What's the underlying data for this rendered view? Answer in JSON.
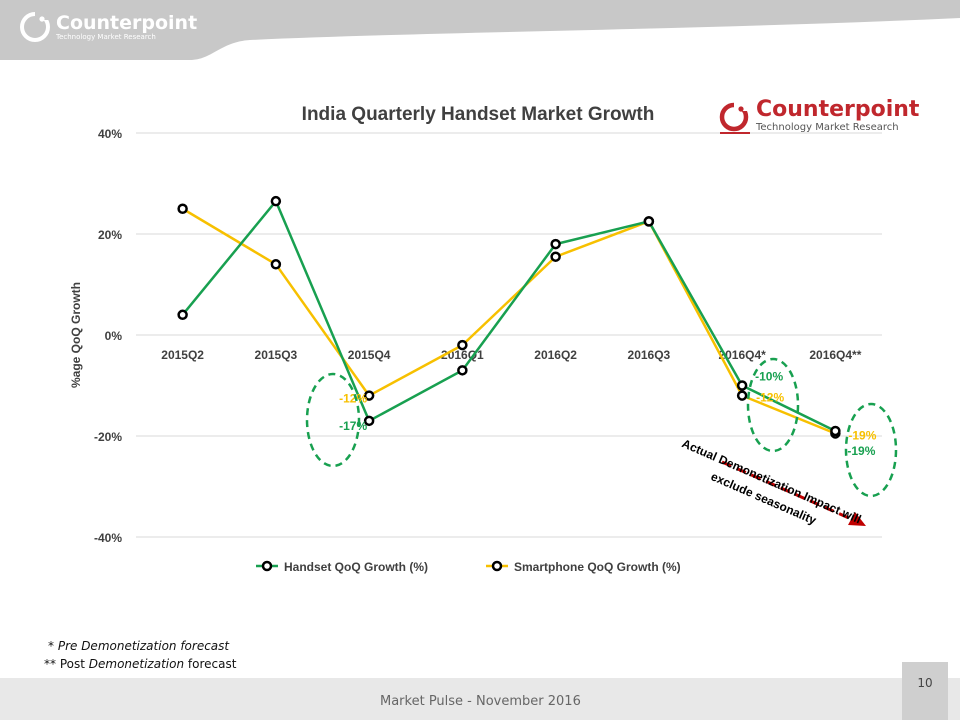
{
  "header": {
    "brand_name": "Counterpoint",
    "brand_tagline": "Technology Market Research"
  },
  "chart_logo": {
    "name": "Counterpoint",
    "tagline": "Technology Market Research"
  },
  "chart_data": {
    "type": "line",
    "title": "India Quarterly Handset Market Growth",
    "xlabel": "",
    "ylabel": "%age QoQ Growth",
    "categories": [
      "2015Q2",
      "2015Q3",
      "2015Q4",
      "2016Q1",
      "2016Q2",
      "2016Q3",
      "2016Q4*",
      "2016Q4**"
    ],
    "ylim": [
      -40,
      40
    ],
    "yticks": [
      40,
      20,
      0,
      -20,
      -40
    ],
    "ytick_labels": [
      "40%",
      "20%",
      "0%",
      "-20%",
      "-40%"
    ],
    "grid": true,
    "legend_position": "bottom",
    "series": [
      {
        "name": "Handset QoQ Growth (%)",
        "color": "#18a050",
        "values": [
          4,
          26.5,
          -17,
          -7,
          18,
          22.5,
          -10,
          -19
        ]
      },
      {
        "name": "Smartphone QoQ Growth (%)",
        "color": "#f7c000",
        "values": [
          25,
          14,
          -12,
          -2,
          15.5,
          22.5,
          -12,
          -19.5
        ]
      }
    ],
    "data_labels": [
      {
        "text": "-12%",
        "series": "Smartphone QoQ Growth (%)",
        "category": "2015Q4"
      },
      {
        "text": "-17%",
        "series": "Handset QoQ Growth (%)",
        "category": "2015Q4"
      },
      {
        "text": "-10%",
        "series": "Handset QoQ Growth (%)",
        "category": "2016Q4*"
      },
      {
        "text": "-12%",
        "series": "Smartphone QoQ Growth (%)",
        "category": "2016Q4*"
      },
      {
        "text": "-19%",
        "series": "Smartphone QoQ Growth (%)",
        "category": "2016Q4**"
      },
      {
        "text": "-19%",
        "series": "Handset QoQ Growth (%)",
        "category": "2016Q4**"
      }
    ],
    "annotation": "Actual Demonetization Impact will exclude seasonality"
  },
  "footnotes": {
    "pre_marker": "* ",
    "pre_text": "Pre Demonetization forecast",
    "post_marker": "** Post ",
    "post_italic": "Demonetization",
    "post_text": " forecast"
  },
  "footer": {
    "text": "Market Pulse - November  2016",
    "page_number": "10"
  },
  "colors": {
    "handset": "#18a050",
    "smartphone": "#f7c000",
    "header_gray": "#c4c4c4",
    "logo_red": "#c0272d",
    "arrow_red": "#c00000"
  }
}
